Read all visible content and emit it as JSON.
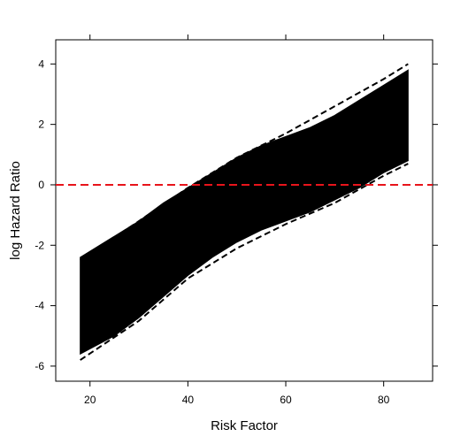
{
  "chart_data": {
    "type": "area",
    "xlabel": "Risk Factor",
    "ylabel": "log Hazard Ratio",
    "xlim": [
      13,
      90
    ],
    "ylim": [
      -6.5,
      4.8
    ],
    "x_ticks": [
      20,
      40,
      60,
      80
    ],
    "x_tick_labels": [
      "20",
      "40",
      "60",
      "80"
    ],
    "y_ticks": [
      -6,
      -4,
      -2,
      0,
      2,
      4
    ],
    "y_tick_labels": [
      "-6",
      "-4",
      "-2",
      "0",
      "2",
      "4"
    ],
    "grid": false,
    "series": [
      {
        "style": "dense overlapping curves (black)",
        "x": [
          18,
          25,
          30,
          35,
          40,
          45,
          50,
          55,
          60,
          65,
          70,
          75,
          80,
          85
        ],
        "upper": [
          -2.4,
          -1.7,
          -1.2,
          -0.6,
          -0.1,
          0.4,
          0.9,
          1.3,
          1.6,
          1.9,
          2.3,
          2.8,
          3.3,
          3.8
        ],
        "lower": [
          -5.6,
          -5.0,
          -4.4,
          -3.7,
          -3.0,
          -2.4,
          -1.9,
          -1.5,
          -1.2,
          -0.9,
          -0.5,
          -0.1,
          0.4,
          0.8
        ]
      },
      {
        "style": "dashed outer curve (black)",
        "x": [
          18,
          30,
          40,
          50,
          60,
          70,
          80,
          85
        ],
        "values": [
          -2.5,
          -1.2,
          -0.1,
          0.9,
          1.7,
          2.6,
          3.5,
          4.0
        ]
      },
      {
        "style": "dashed outer curve (black)",
        "x": [
          18,
          30,
          40,
          50,
          60,
          70,
          80,
          85
        ],
        "values": [
          -5.8,
          -4.5,
          -3.1,
          -2.1,
          -1.3,
          -0.6,
          0.3,
          0.7
        ]
      },
      {
        "style": "dashed reference line (red)",
        "color": "#e8141b",
        "x": [
          13,
          90
        ],
        "values": [
          0,
          0
        ]
      }
    ]
  }
}
